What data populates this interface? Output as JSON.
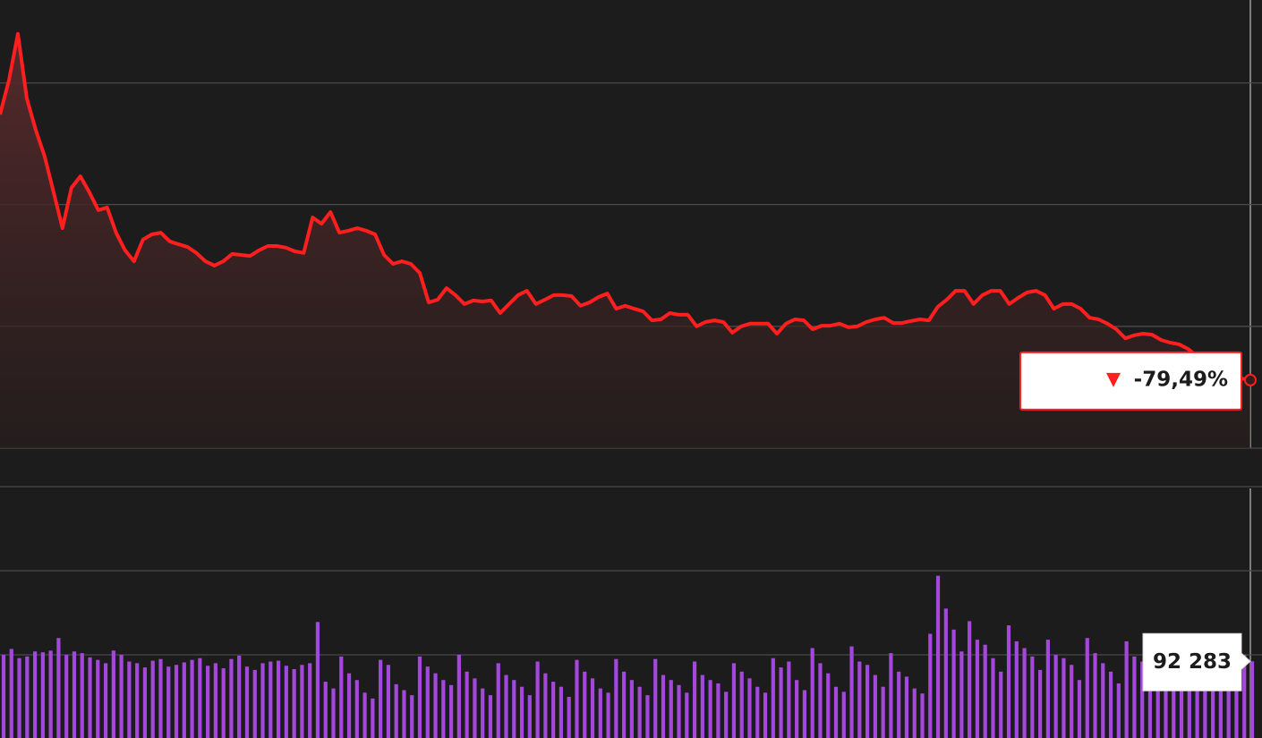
{
  "chart_data": [
    {
      "type": "line",
      "color": "#ff1f1f",
      "values": [
        0.5,
        10.8,
        24.8,
        5.4,
        -4.1,
        -12.1,
        -22.9,
        -33.7,
        -21.6,
        -18.1,
        -22.9,
        -28.3,
        -27.5,
        -35.1,
        -40.4,
        -43.7,
        -37.2,
        -35.6,
        -35.1,
        -37.7,
        -38.6,
        -39.4,
        -41.2,
        -43.7,
        -45.0,
        -43.7,
        -41.5,
        -41.8,
        -42.1,
        -40.4,
        -39.1,
        -39.1,
        -39.6,
        -40.7,
        -41.2,
        -30.5,
        -32.4,
        -28.9,
        -35.1,
        -34.5,
        -33.7,
        -34.5,
        -35.6,
        -41.8,
        -44.5,
        -43.7,
        -44.5,
        -47.2,
        -56.1,
        -55.3,
        -51.8,
        -53.9,
        -56.6,
        -55.5,
        -55.8,
        -55.5,
        -59.3,
        -56.6,
        -53.9,
        -52.6,
        -56.6,
        -55.3,
        -53.9,
        -53.9,
        -54.2,
        -57.1,
        -56.1,
        -54.5,
        -53.4,
        -58.0,
        -57.1,
        -58.0,
        -58.8,
        -61.5,
        -61.2,
        -59.3,
        -59.8,
        -59.8,
        -63.3,
        -62.0,
        -61.5,
        -62.0,
        -65.2,
        -63.3,
        -62.5,
        -62.5,
        -62.5,
        -65.5,
        -62.5,
        -61.2,
        -61.5,
        -64.2,
        -63.1,
        -63.1,
        -62.5,
        -63.6,
        -63.3,
        -62.0,
        -61.2,
        -60.7,
        -62.3,
        -62.3,
        -61.7,
        -61.2,
        -61.5,
        -57.4,
        -55.3,
        -52.6,
        -52.6,
        -56.6,
        -53.9,
        -52.6,
        -52.6,
        -56.6,
        -54.7,
        -53.1,
        -52.6,
        -53.9,
        -58.0,
        -56.6,
        -56.6,
        -58.0,
        -60.7,
        -61.2,
        -62.5,
        -64.2,
        -66.9,
        -66.0,
        -65.5,
        -65.8,
        -67.4,
        -68.2,
        -68.7,
        -70.1,
        -72.2,
        -74.1,
        -75.5,
        -76.8,
        -78.2,
        -79.0,
        -79.49
      ],
      "value_labels": [
        null,
        null,
        null,
        null,
        null,
        null,
        null,
        null,
        null,
        null,
        null,
        null,
        null,
        null,
        null,
        null,
        null,
        null,
        null,
        null,
        null,
        null,
        null,
        null,
        null,
        null,
        null,
        null,
        null,
        null,
        null,
        null,
        null,
        null,
        null,
        null,
        null,
        null,
        null,
        null,
        null,
        null,
        null,
        null,
        null,
        null,
        null,
        null,
        null,
        null,
        null,
        null,
        null,
        null,
        null,
        null,
        null,
        null,
        null,
        null,
        null,
        null,
        null,
        null,
        null,
        null,
        null,
        null,
        null,
        null,
        null,
        null,
        null,
        null,
        null,
        null,
        null,
        null,
        null,
        null,
        null,
        null,
        null,
        null,
        null,
        null,
        null,
        null,
        null,
        null,
        null,
        null,
        null,
        null,
        null,
        null,
        null,
        null,
        null,
        null,
        null,
        null,
        null,
        null,
        null,
        null,
        null,
        null,
        null,
        null,
        null,
        null,
        null,
        null,
        null,
        null,
        null,
        null,
        null,
        null,
        null,
        null,
        null,
        null,
        null,
        null,
        null,
        null,
        null,
        null,
        null,
        null,
        null,
        null,
        null,
        null,
        null,
        null,
        null,
        null,
        "-79,49%"
      ],
      "ylim": [
        -100,
        35
      ],
      "yticks": [
        -100,
        -63.3,
        -26.6,
        10
      ],
      "grid": true
    },
    {
      "type": "bar",
      "color": "#a447dc",
      "values": [
        100000,
        107000,
        96000,
        98000,
        104000,
        103000,
        105000,
        120000,
        100000,
        104000,
        102000,
        97000,
        94000,
        90000,
        105000,
        100000,
        92000,
        90000,
        85000,
        93000,
        95000,
        86000,
        88000,
        91000,
        94000,
        96000,
        87000,
        90000,
        84000,
        95000,
        99000,
        86000,
        82000,
        90000,
        92000,
        93000,
        87000,
        83000,
        88000,
        90000,
        139000,
        68000,
        60000,
        98000,
        78000,
        70000,
        55000,
        48000,
        94000,
        88000,
        65000,
        58000,
        52000,
        98000,
        86000,
        78000,
        70000,
        64000,
        100000,
        80000,
        72000,
        60000,
        52000,
        90000,
        76000,
        70000,
        62000,
        52000,
        92000,
        78000,
        68000,
        62000,
        50000,
        94000,
        80000,
        72000,
        60000,
        55000,
        95000,
        80000,
        70000,
        62000,
        52000,
        95000,
        76000,
        70000,
        64000,
        55000,
        92000,
        76000,
        70000,
        66000,
        56000,
        90000,
        80000,
        72000,
        62000,
        55000,
        96000,
        85000,
        92000,
        70000,
        58000,
        108000,
        90000,
        78000,
        62000,
        56000,
        110000,
        92000,
        88000,
        76000,
        62000,
        102000,
        80000,
        74000,
        60000,
        54000,
        125000,
        194000,
        155000,
        130000,
        104000,
        140000,
        118000,
        112000,
        96000,
        80000,
        135000,
        116000,
        108000,
        98000,
        82000,
        118000,
        100000,
        96000,
        88000,
        70000,
        120000,
        102000,
        90000,
        80000,
        66000,
        116000,
        98000,
        92000,
        84000,
        76000,
        88000,
        80000,
        74000,
        70000,
        68000,
        85000,
        78000,
        74000,
        70000,
        72000,
        100000,
        92283
      ],
      "value_labels": [
        null,
        null,
        null,
        null,
        null,
        null,
        null,
        null,
        null,
        null,
        null,
        null,
        null,
        null,
        null,
        null,
        null,
        null,
        null,
        null,
        null,
        null,
        null,
        null,
        null,
        null,
        null,
        null,
        null,
        null,
        null,
        null,
        null,
        null,
        null,
        null,
        null,
        null,
        null,
        null,
        null,
        null,
        null,
        null,
        null,
        null,
        null,
        null,
        null,
        null,
        null,
        null,
        null,
        null,
        null,
        null,
        null,
        null,
        null,
        null,
        null,
        null,
        null,
        null,
        null,
        null,
        null,
        null,
        null,
        null,
        null,
        null,
        null,
        null,
        null,
        null,
        null,
        null,
        null,
        null,
        null,
        null,
        null,
        null,
        null,
        null,
        null,
        null,
        null,
        null,
        null,
        null,
        null,
        null,
        null,
        null,
        null,
        null,
        null,
        null,
        null,
        null,
        null,
        null,
        null,
        null,
        null,
        null,
        null,
        null,
        null,
        null,
        null,
        null,
        null,
        null,
        null,
        null,
        null,
        null,
        null,
        null,
        null,
        null,
        null,
        null,
        null,
        null,
        null,
        null,
        null,
        null,
        null,
        null,
        null,
        null,
        null,
        null,
        null,
        null,
        null,
        null,
        null,
        null,
        null,
        null,
        null,
        null,
        null,
        null,
        null,
        null,
        null,
        null,
        null,
        null,
        null,
        null,
        null,
        "92 283"
      ],
      "ylim": [
        0,
        300000
      ],
      "yticks": [
        100000,
        200000,
        300000
      ],
      "grid": true
    }
  ]
}
